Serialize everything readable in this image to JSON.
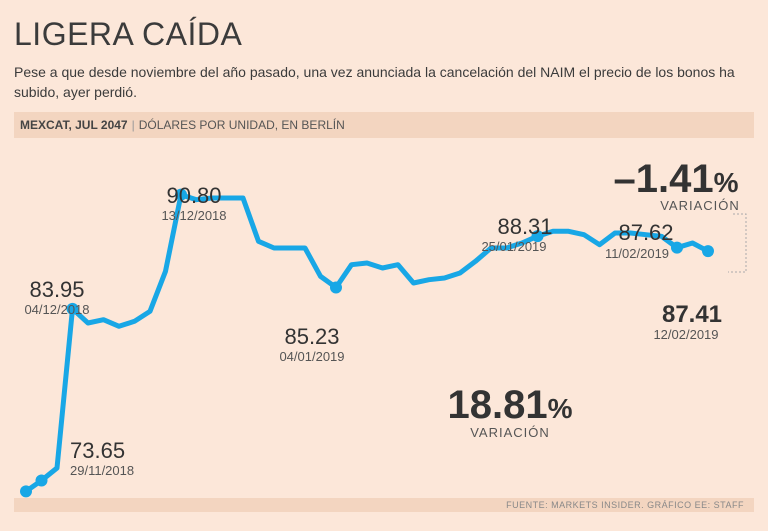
{
  "header": {
    "title": "LIGERA CAÍDA",
    "subtitle": "Pese a que desde noviembre del año pasado, una vez anunciada la cancelación del NAIM el precio de los bonos ha subido, ayer perdió."
  },
  "source_bar": {
    "series": "MEXCAT, JUL 2047",
    "units": "DÓLARES POR UNIDAD, EN BERLÍN"
  },
  "footer": {
    "source": "FUENTE: MARKETS INSIDER. GRÁFICO EE: STAFF"
  },
  "chart_data": {
    "type": "line",
    "title": "LIGERA CAÍDA",
    "xlabel": "",
    "ylabel": "DÓLARES POR UNIDAD",
    "ylim": [
      72,
      93
    ],
    "grid": false,
    "color": "#18a7e6",
    "series": [
      {
        "name": "MEXCAT, JUL 2047",
        "values": [
          73.0,
          73.65,
          74.4,
          83.95,
          83.1,
          83.3,
          82.9,
          83.2,
          83.8,
          86.2,
          90.8,
          90.5,
          90.6,
          90.6,
          90.6,
          88.0,
          87.6,
          87.6,
          87.6,
          85.9,
          85.23,
          86.6,
          86.7,
          86.4,
          86.6,
          85.5,
          85.7,
          85.8,
          86.1,
          86.8,
          87.6,
          87.6,
          87.9,
          88.31,
          88.6,
          88.6,
          88.4,
          87.8,
          88.5,
          88.5,
          88.4,
          88.3,
          87.62,
          87.9,
          87.41
        ]
      }
    ],
    "callouts": [
      {
        "index": 1,
        "value": "73.65",
        "date": "29/11/2018"
      },
      {
        "index": 3,
        "value": "83.95",
        "date": "04/12/2018"
      },
      {
        "index": 10,
        "value": "90.80",
        "date": "13/12/2018"
      },
      {
        "index": 20,
        "value": "85.23",
        "date": "04/01/2019"
      },
      {
        "index": 33,
        "value": "88.31",
        "date": "25/01/2019"
      },
      {
        "index": 42,
        "value": "87.62",
        "date": "11/02/2019"
      },
      {
        "index": 44,
        "value": "87.41",
        "date": "12/02/2019"
      }
    ],
    "big_stats": [
      {
        "value": "18.81",
        "unit": "%",
        "label": "VARIACIÓN"
      },
      {
        "value": "–1.41",
        "unit": "%",
        "label": "VARIACIÓN"
      }
    ]
  }
}
